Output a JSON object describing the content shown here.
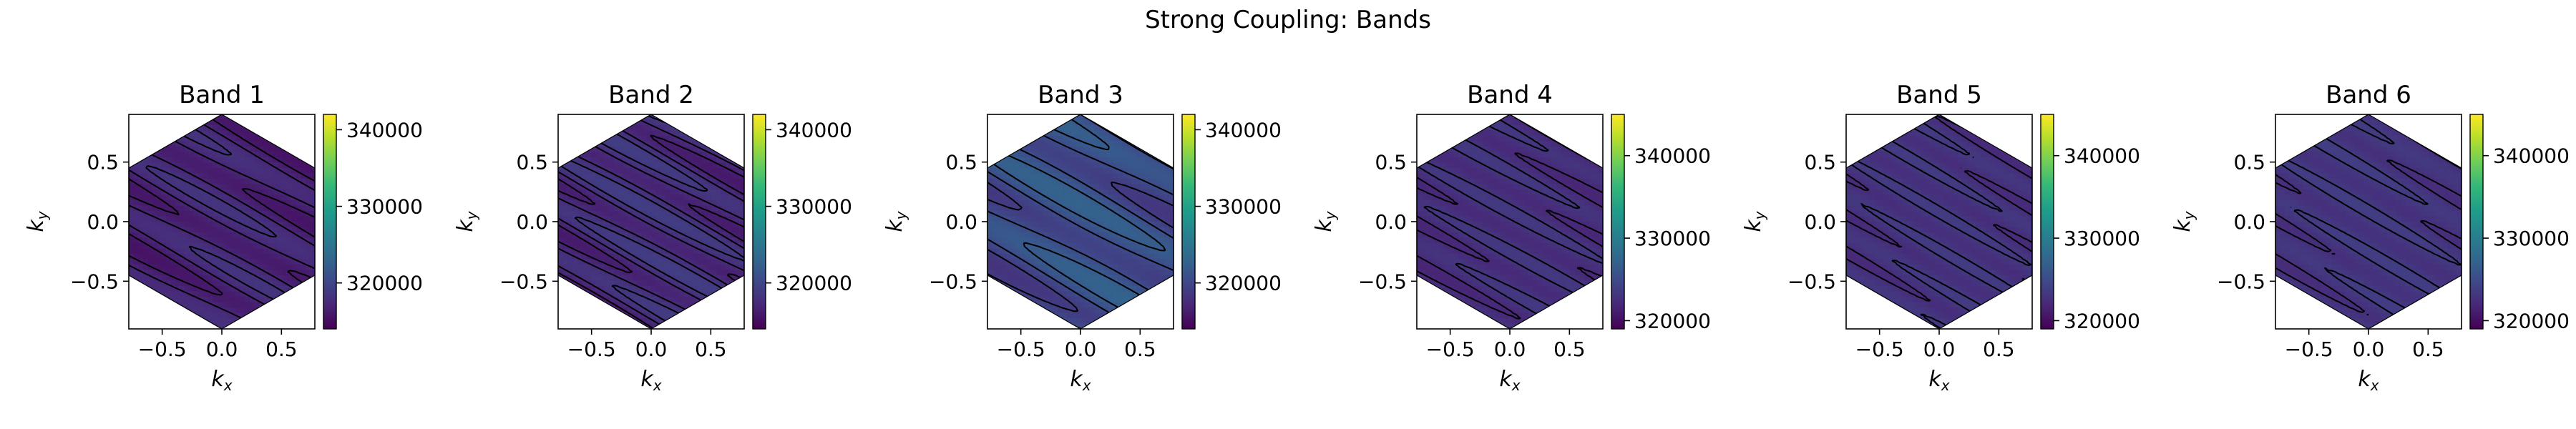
{
  "figure": {
    "title": "Strong Coupling: Bands"
  },
  "colormap": {
    "name": "viridis",
    "stops": [
      "#440154",
      "#482878",
      "#3e4989",
      "#31688e",
      "#26828e",
      "#1f9e89",
      "#35b779",
      "#6ece58",
      "#b5de2b",
      "#fde725"
    ]
  },
  "chart_data": [
    {
      "type": "heatmap",
      "title": "Band 1",
      "xlabel": "k_x",
      "ylabel": "k_y",
      "xlim": [
        -0.78,
        0.78
      ],
      "ylim": [
        -0.9,
        0.9
      ],
      "xticks": [
        -0.5,
        0.0,
        0.5
      ],
      "yticks": [
        -0.5,
        0.0,
        0.5
      ],
      "xtick_labels": [
        "−0.5",
        "0.0",
        "0.5"
      ],
      "ytick_labels": [
        "−0.5",
        "0.0",
        "0.5"
      ],
      "region": "hexagon",
      "region_circumradius": 0.9,
      "colorbar": {
        "min": 314000,
        "max": 342000,
        "ticks": [
          320000,
          330000,
          340000
        ],
        "tick_labels": [
          "320000",
          "330000",
          "340000"
        ]
      },
      "field": {
        "mean": 316800,
        "amplitude": 1500,
        "stripe_freq": 4.2,
        "stripe_angle_deg": -28,
        "levels": [
          316000,
          317000,
          318000
        ]
      }
    },
    {
      "type": "heatmap",
      "title": "Band 2",
      "xlabel": "k_x",
      "ylabel": "k_y",
      "xlim": [
        -0.78,
        0.78
      ],
      "ylim": [
        -0.9,
        0.9
      ],
      "xticks": [
        -0.5,
        0.0,
        0.5
      ],
      "yticks": [
        -0.5,
        0.0,
        0.5
      ],
      "xtick_labels": [
        "−0.5",
        "0.0",
        "0.5"
      ],
      "ytick_labels": [
        "−0.5",
        "0.0",
        "0.5"
      ],
      "region": "hexagon",
      "region_circumradius": 0.9,
      "colorbar": {
        "min": 314000,
        "max": 342000,
        "ticks": [
          320000,
          330000,
          340000
        ],
        "tick_labels": [
          "320000",
          "330000",
          "340000"
        ]
      },
      "field": {
        "mean": 317500,
        "amplitude": 1700,
        "stripe_freq": 5.0,
        "stripe_angle_deg": -28,
        "levels": [
          316500,
          317500,
          318500
        ]
      }
    },
    {
      "type": "heatmap",
      "title": "Band 3",
      "xlabel": "k_x",
      "ylabel": "k_y",
      "xlim": [
        -0.78,
        0.78
      ],
      "ylim": [
        -0.9,
        0.9
      ],
      "xticks": [
        -0.5,
        0.0,
        0.5
      ],
      "yticks": [
        -0.5,
        0.0,
        0.5
      ],
      "xtick_labels": [
        "−0.5",
        "0.0",
        "0.5"
      ],
      "ytick_labels": [
        "−0.5",
        "0.0",
        "0.5"
      ],
      "region": "hexagon",
      "region_circumradius": 0.9,
      "colorbar": {
        "min": 314000,
        "max": 342000,
        "ticks": [
          320000,
          330000,
          340000
        ],
        "tick_labels": [
          "320000",
          "330000",
          "340000"
        ]
      },
      "field": {
        "mean": 320500,
        "amplitude": 2400,
        "stripe_freq": 3.4,
        "stripe_angle_deg": -28,
        "levels": [
          319000,
          320500,
          322000
        ]
      }
    },
    {
      "type": "heatmap",
      "title": "Band 4",
      "xlabel": "k_x",
      "ylabel": "k_y",
      "xlim": [
        -0.78,
        0.78
      ],
      "ylim": [
        -0.9,
        0.9
      ],
      "xticks": [
        -0.5,
        0.0,
        0.5
      ],
      "yticks": [
        -0.5,
        0.0,
        0.5
      ],
      "xtick_labels": [
        "−0.5",
        "0.0",
        "0.5"
      ],
      "ytick_labels": [
        "−0.5",
        "0.0",
        "0.5"
      ],
      "region": "hexagon",
      "region_circumradius": 0.9,
      "colorbar": {
        "min": 319000,
        "max": 345000,
        "ticks": [
          320000,
          330000,
          340000
        ],
        "tick_labels": [
          "320000",
          "330000",
          "340000"
        ]
      },
      "field": {
        "mean": 322500,
        "amplitude": 900,
        "stripe_freq": 6.0,
        "stripe_angle_deg": -28,
        "levels": [
          322000,
          323000
        ]
      }
    },
    {
      "type": "heatmap",
      "title": "Band 5",
      "xlabel": "k_x",
      "ylabel": "k_y",
      "xlim": [
        -0.78,
        0.78
      ],
      "ylim": [
        -0.9,
        0.9
      ],
      "xticks": [
        -0.5,
        0.0,
        0.5
      ],
      "yticks": [
        -0.5,
        0.0,
        0.5
      ],
      "xtick_labels": [
        "−0.5",
        "0.0",
        "0.5"
      ],
      "ytick_labels": [
        "−0.5",
        "0.0",
        "0.5"
      ],
      "region": "hexagon",
      "region_circumradius": 0.9,
      "colorbar": {
        "min": 319000,
        "max": 345000,
        "ticks": [
          320000,
          330000,
          340000
        ],
        "tick_labels": [
          "320000",
          "330000",
          "340000"
        ]
      },
      "field": {
        "mean": 322800,
        "amplitude": 800,
        "stripe_freq": 6.6,
        "stripe_angle_deg": -30,
        "levels": [
          322300,
          323300
        ]
      }
    },
    {
      "type": "heatmap",
      "title": "Band 6",
      "xlabel": "k_x",
      "ylabel": "k_y",
      "xlim": [
        -0.78,
        0.78
      ],
      "ylim": [
        -0.9,
        0.9
      ],
      "xticks": [
        -0.5,
        0.0,
        0.5
      ],
      "yticks": [
        -0.5,
        0.0,
        0.5
      ],
      "xtick_labels": [
        "−0.5",
        "0.0",
        "0.5"
      ],
      "ytick_labels": [
        "−0.5",
        "0.0",
        "0.5"
      ],
      "region": "hexagon",
      "region_circumradius": 0.9,
      "colorbar": {
        "min": 319000,
        "max": 345000,
        "ticks": [
          320000,
          330000,
          340000
        ],
        "tick_labels": [
          "320000",
          "330000",
          "340000"
        ]
      },
      "field": {
        "mean": 323000,
        "amplitude": 800,
        "stripe_freq": 6.0,
        "stripe_angle_deg": -30,
        "levels": [
          322500,
          323500
        ]
      }
    }
  ]
}
